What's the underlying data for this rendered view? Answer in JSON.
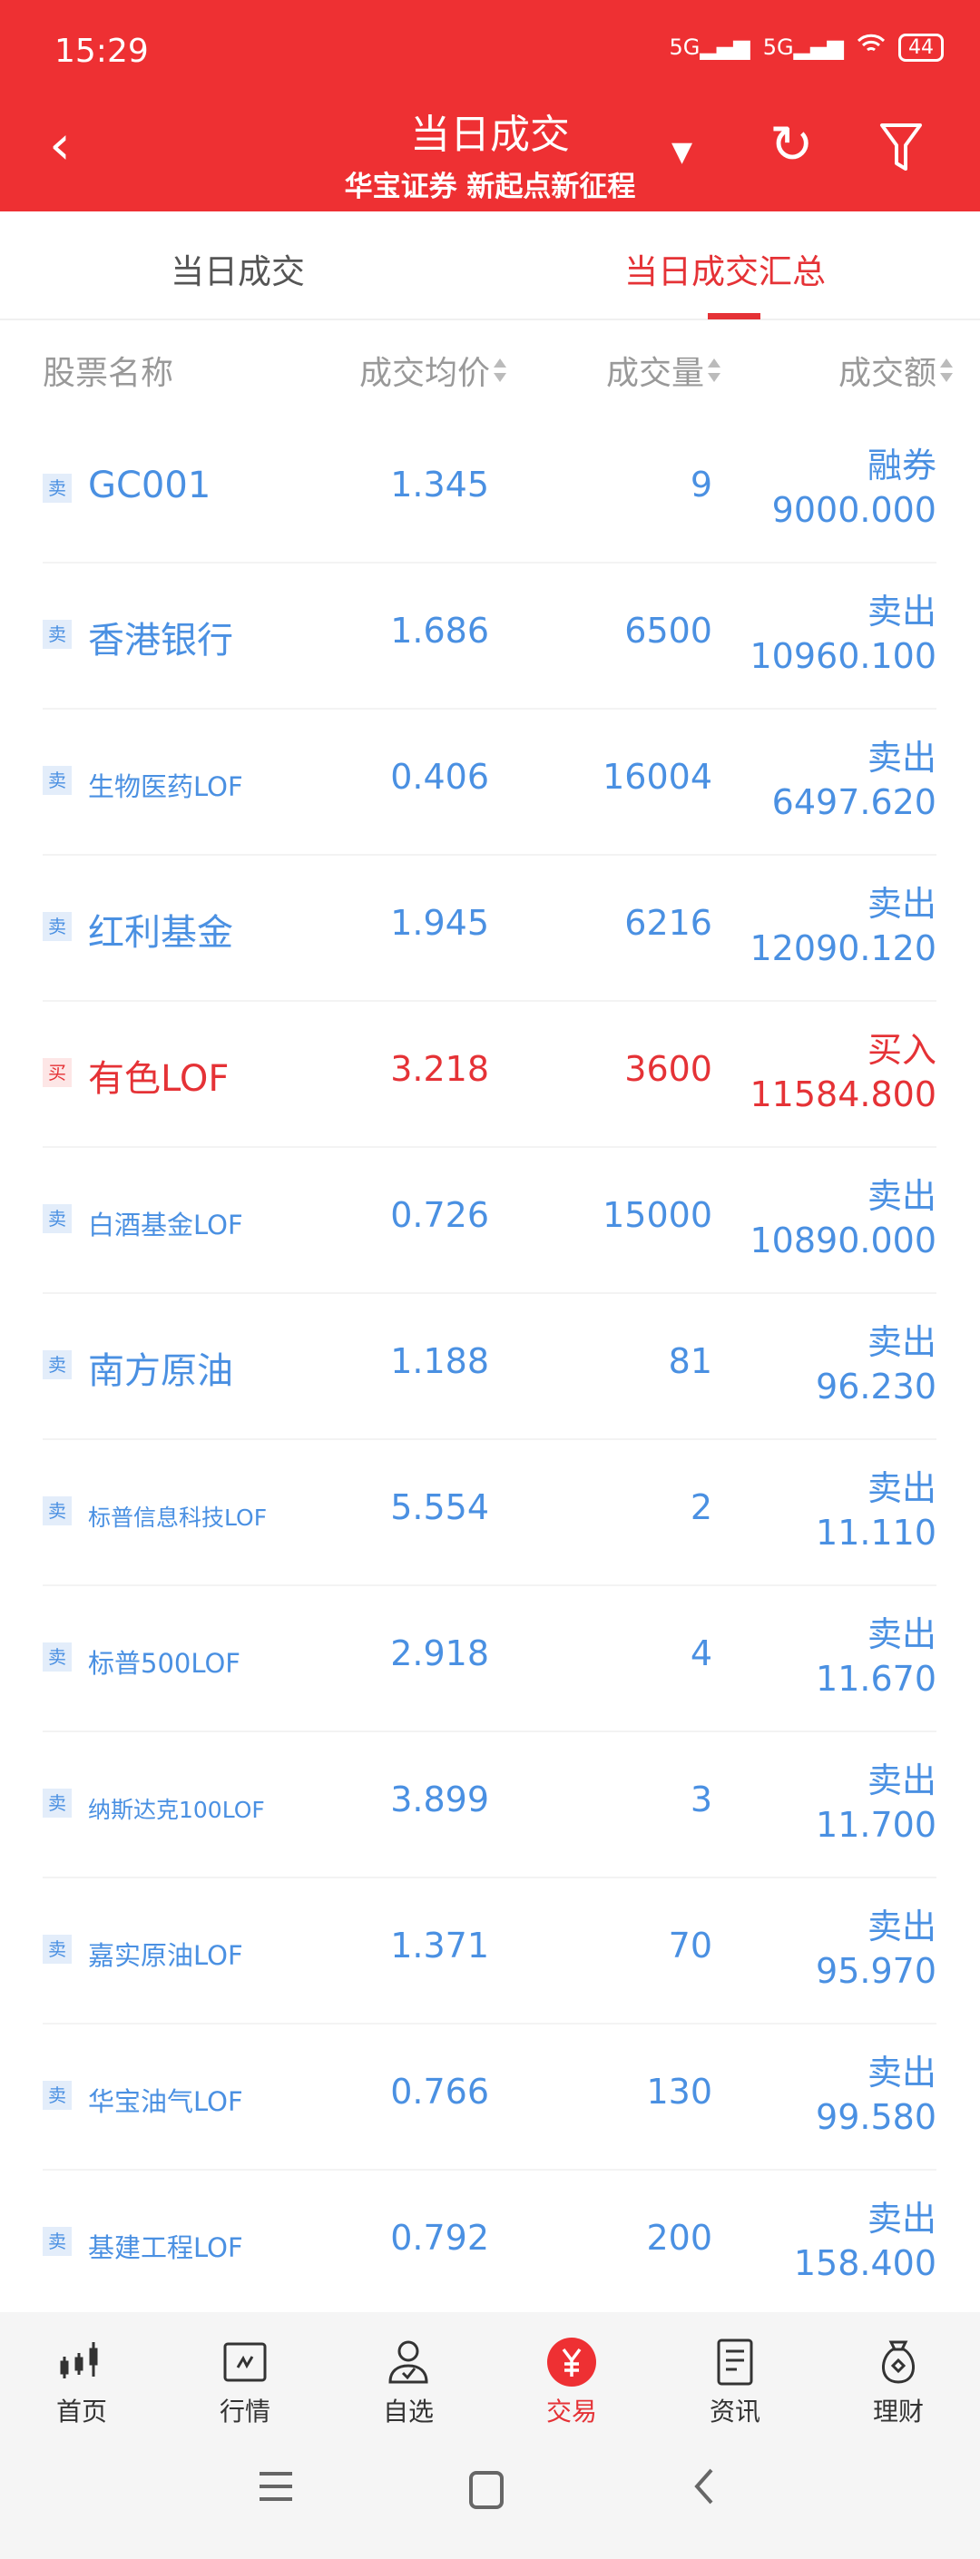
{
  "status_bar": {
    "time": "15:29",
    "network1": "5G",
    "network2": "5G",
    "battery": "44"
  },
  "header": {
    "title": "当日成交",
    "subtitle": "华宝证券 新起点新征程"
  },
  "tabs": [
    {
      "label": "当日成交",
      "active": false
    },
    {
      "label": "当日成交汇总",
      "active": true
    }
  ],
  "columns": {
    "name": "股票名称",
    "price": "成交均价",
    "volume": "成交量",
    "amount": "成交额"
  },
  "colors": {
    "brand": "#ee3033",
    "sell": "#4a90e2",
    "buy": "#e53236"
  },
  "rows": [
    {
      "side": "卖",
      "name": "GC001",
      "price": "1.345",
      "volume": "9",
      "action": "融券",
      "amount": "9000.000",
      "type": "sell"
    },
    {
      "side": "卖",
      "name": "香港银行",
      "price": "1.686",
      "volume": "6500",
      "action": "卖出",
      "amount": "10960.100",
      "type": "sell"
    },
    {
      "side": "卖",
      "name": "生物医药LOF",
      "price": "0.406",
      "volume": "16004",
      "action": "卖出",
      "amount": "6497.620",
      "type": "sell"
    },
    {
      "side": "卖",
      "name": "红利基金",
      "price": "1.945",
      "volume": "6216",
      "action": "卖出",
      "amount": "12090.120",
      "type": "sell"
    },
    {
      "side": "买",
      "name": "有色LOF",
      "price": "3.218",
      "volume": "3600",
      "action": "买入",
      "amount": "11584.800",
      "type": "buy"
    },
    {
      "side": "卖",
      "name": "白酒基金LOF",
      "price": "0.726",
      "volume": "15000",
      "action": "卖出",
      "amount": "10890.000",
      "type": "sell"
    },
    {
      "side": "卖",
      "name": "南方原油",
      "price": "1.188",
      "volume": "81",
      "action": "卖出",
      "amount": "96.230",
      "type": "sell"
    },
    {
      "side": "卖",
      "name": "标普信息科技LOF",
      "price": "5.554",
      "volume": "2",
      "action": "卖出",
      "amount": "11.110",
      "type": "sell"
    },
    {
      "side": "卖",
      "name": "标普500LOF",
      "price": "2.918",
      "volume": "4",
      "action": "卖出",
      "amount": "11.670",
      "type": "sell"
    },
    {
      "side": "卖",
      "name": "纳斯达克100LOF",
      "price": "3.899",
      "volume": "3",
      "action": "卖出",
      "amount": "11.700",
      "type": "sell"
    },
    {
      "side": "卖",
      "name": "嘉实原油LOF",
      "price": "1.371",
      "volume": "70",
      "action": "卖出",
      "amount": "95.970",
      "type": "sell"
    },
    {
      "side": "卖",
      "name": "华宝油气LOF",
      "price": "0.766",
      "volume": "130",
      "action": "卖出",
      "amount": "99.580",
      "type": "sell"
    },
    {
      "side": "卖",
      "name": "基建工程LOF",
      "price": "0.792",
      "volume": "200",
      "action": "卖出",
      "amount": "158.400",
      "type": "sell"
    }
  ],
  "bottom_nav": [
    {
      "label": "首页",
      "icon": "candlestick-icon"
    },
    {
      "label": "行情",
      "icon": "chart-icon"
    },
    {
      "label": "自选",
      "icon": "user-check-icon"
    },
    {
      "label": "交易",
      "icon": "yuan-icon",
      "active": true
    },
    {
      "label": "资讯",
      "icon": "document-icon"
    },
    {
      "label": "理财",
      "icon": "money-bag-icon"
    }
  ]
}
